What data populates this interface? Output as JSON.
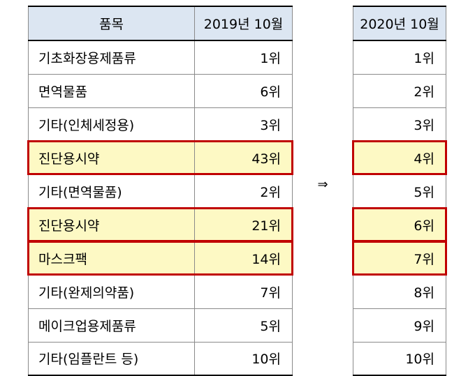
{
  "left_table": {
    "headers": [
      "품목",
      "2019년 10월"
    ],
    "rows": [
      {
        "item": "기초화장용제품류",
        "rank": "1위",
        "highlight": false
      },
      {
        "item": "면역물품",
        "rank": "6위",
        "highlight": false
      },
      {
        "item": "기타(인체세정용)",
        "rank": "3위",
        "highlight": false
      },
      {
        "item": "진단용시약",
        "rank": "43위",
        "highlight": true
      },
      {
        "item": "기타(면역물품)",
        "rank": "2위",
        "highlight": false
      },
      {
        "item": "진단용시약",
        "rank": "21위",
        "highlight": true
      },
      {
        "item": "마스크팩",
        "rank": "14위",
        "highlight": true
      },
      {
        "item": "기타(완제의약품)",
        "rank": "7위",
        "highlight": false
      },
      {
        "item": "메이크업용제품류",
        "rank": "5위",
        "highlight": false
      },
      {
        "item": "기타(임플란트 등)",
        "rank": "10위",
        "highlight": false
      }
    ]
  },
  "arrow": "⇒",
  "right_table": {
    "header": "2020년 10월",
    "rows": [
      {
        "rank": "1위",
        "highlight": false
      },
      {
        "rank": "2위",
        "highlight": false
      },
      {
        "rank": "3위",
        "highlight": false
      },
      {
        "rank": "4위",
        "highlight": true
      },
      {
        "rank": "5위",
        "highlight": false
      },
      {
        "rank": "6위",
        "highlight": true
      },
      {
        "rank": "7위",
        "highlight": true
      },
      {
        "rank": "8위",
        "highlight": false
      },
      {
        "rank": "9위",
        "highlight": false
      },
      {
        "rank": "10위",
        "highlight": false
      }
    ]
  },
  "colors": {
    "header_bg": "#dce6f2",
    "highlight_bg": "#fdf9c4",
    "highlight_border": "#c00000"
  }
}
